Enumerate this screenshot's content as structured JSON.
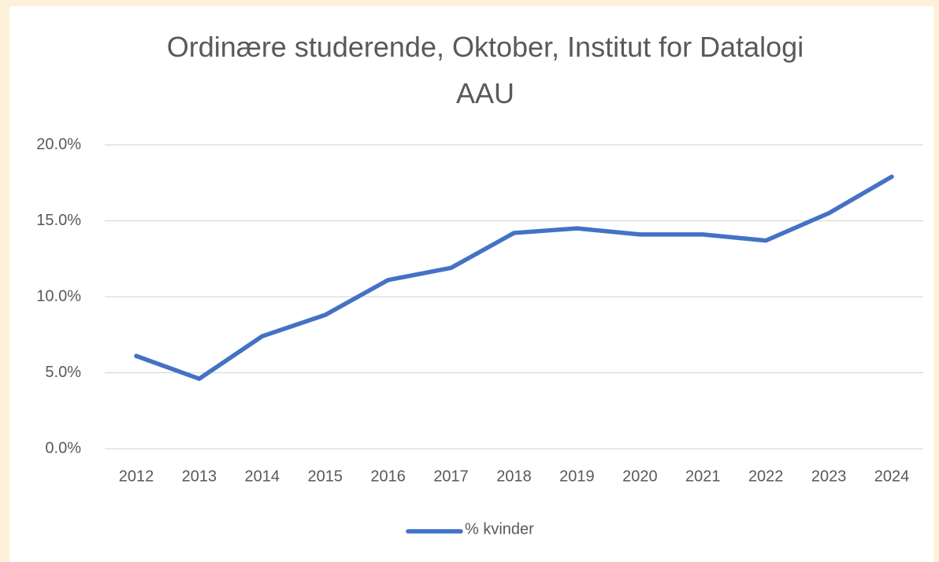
{
  "chart_data": {
    "type": "line",
    "title": "Ordinære studerende, Oktober, Institut for Datalogi AAU",
    "categories": [
      "2012",
      "2013",
      "2014",
      "2015",
      "2016",
      "2017",
      "2018",
      "2019",
      "2020",
      "2021",
      "2022",
      "2023",
      "2024"
    ],
    "series": [
      {
        "name": "% kvinder",
        "color": "#4472c4",
        "values": [
          6.1,
          4.6,
          7.4,
          8.8,
          11.1,
          11.9,
          14.2,
          14.5,
          14.1,
          14.1,
          13.7,
          15.5,
          17.9
        ]
      }
    ],
    "ylim": [
      0,
      20
    ],
    "yticks": [
      {
        "value": 0,
        "label": "0.0%"
      },
      {
        "value": 5,
        "label": "5.0%"
      },
      {
        "value": 10,
        "label": "10.0%"
      },
      {
        "value": 15,
        "label": "15.0%"
      },
      {
        "value": 20,
        "label": "20.0%"
      }
    ],
    "grid": true,
    "legend": "bottom"
  }
}
